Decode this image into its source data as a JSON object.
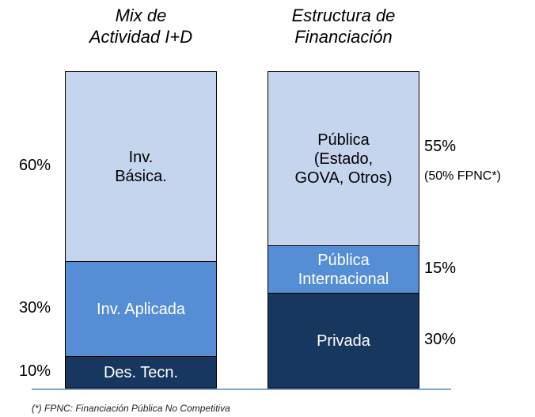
{
  "chart_data": [
    {
      "type": "stacked_bar",
      "title": "Mix de\nActividad I+D",
      "ylim": [
        0,
        100
      ],
      "label_side": "left",
      "series": [
        {
          "name": "Des. Tecn.",
          "color": "#17375e",
          "values": [
            10
          ],
          "value_labels": [
            "10%"
          ]
        },
        {
          "name": "Inv. Aplicada",
          "color": "#558ed5",
          "values": [
            30
          ],
          "value_labels": [
            "30%"
          ]
        },
        {
          "name": "Inv.\nBásica.",
          "color": "#c6d5ee",
          "values": [
            60
          ],
          "value_labels": [
            "60%"
          ]
        }
      ]
    },
    {
      "type": "stacked_bar",
      "title": "Estructura de\nFinanciación",
      "ylim": [
        0,
        100
      ],
      "label_side": "right",
      "series": [
        {
          "name": "Privada",
          "color": "#17375e",
          "values": [
            30
          ],
          "value_labels": [
            "30%"
          ]
        },
        {
          "name": "Pública\nInternacional",
          "color": "#558ed5",
          "values": [
            15
          ],
          "value_labels": [
            "15%"
          ]
        },
        {
          "name": "Pública\n(Estado,\nGOVA, Otros)",
          "color": "#c6d5ee",
          "values": [
            55
          ],
          "value_labels": [
            "55%"
          ],
          "annotation": "(50% FPNC*)"
        }
      ]
    }
  ],
  "footnote": "(*) FPNC: Financiación Pública No Competitiva"
}
